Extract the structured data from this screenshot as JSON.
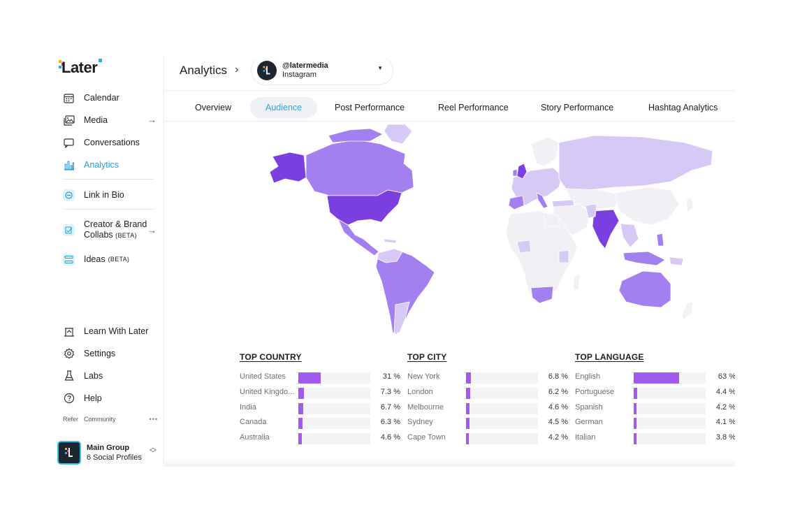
{
  "app": {
    "logo_text": "Later"
  },
  "sidebar": {
    "items": [
      {
        "label": "Calendar",
        "icon": "calendar-icon"
      },
      {
        "label": "Media",
        "icon": "image-icon"
      },
      {
        "label": "Conversations",
        "icon": "chat-icon"
      },
      {
        "label": "Analytics",
        "icon": "bar-chart-icon"
      },
      {
        "label": "Link in Bio",
        "icon": "link-icon"
      },
      {
        "label": "Creator & Brand",
        "label2": "Collabs",
        "beta": "(BETA)",
        "icon": "collab-icon"
      },
      {
        "label": "Ideas",
        "beta": "(BETA)",
        "icon": "ideas-icon"
      },
      {
        "label": "Learn With Later",
        "icon": "learn-icon"
      },
      {
        "label": "Settings",
        "icon": "gear-icon"
      },
      {
        "label": "Labs",
        "icon": "flask-icon"
      },
      {
        "label": "Help",
        "icon": "help-icon"
      }
    ],
    "sub_links": [
      "Refer",
      "Community"
    ],
    "more": "•••",
    "group": {
      "name": "Main Group",
      "profiles": "6 Social Profiles"
    }
  },
  "header": {
    "title": "Analytics",
    "profile": {
      "handle": "@latermedia",
      "network": "Instagram"
    }
  },
  "tabs": [
    {
      "label": "Overview"
    },
    {
      "label": "Audience",
      "active": true
    },
    {
      "label": "Post Performance"
    },
    {
      "label": "Reel Performance"
    },
    {
      "label": "Story Performance"
    },
    {
      "label": "Hashtag Analytics"
    }
  ],
  "stats": [
    {
      "title": "TOP COUNTRY",
      "rows": [
        {
          "label": "United States",
          "value": "31 %",
          "pct": 31
        },
        {
          "label": "United Kingdo...",
          "value": "7.3 %",
          "pct": 7.3
        },
        {
          "label": "India",
          "value": "6.7 %",
          "pct": 6.7
        },
        {
          "label": "Canada",
          "value": "6.3 %",
          "pct": 6.3
        },
        {
          "label": "Australia",
          "value": "4.6 %",
          "pct": 4.6
        }
      ]
    },
    {
      "title": "TOP CITY",
      "rows": [
        {
          "label": "New York",
          "value": "6.8 %",
          "pct": 6.8
        },
        {
          "label": "London",
          "value": "6.2 %",
          "pct": 6.2
        },
        {
          "label": "Melbourne",
          "value": "4.6 %",
          "pct": 4.6
        },
        {
          "label": "Sydney",
          "value": "4.5 %",
          "pct": 4.5
        },
        {
          "label": "Cape Town",
          "value": "4.2 %",
          "pct": 4.2
        }
      ]
    },
    {
      "title": "TOP LANGUAGE",
      "rows": [
        {
          "label": "English",
          "value": "63 %",
          "pct": 63
        },
        {
          "label": "Portuguese",
          "value": "4.4 %",
          "pct": 4.4
        },
        {
          "label": "Spanish",
          "value": "4.2 %",
          "pct": 4.2
        },
        {
          "label": "German",
          "value": "4.1 %",
          "pct": 4.1
        },
        {
          "label": "Italian",
          "value": "3.8 %",
          "pct": 3.8
        }
      ]
    }
  ],
  "colors": {
    "accent": "#22a0de",
    "bar": "#a25bef",
    "map_strong": "#7b3fe0",
    "map_mid": "#a47ff0",
    "map_light": "#d7c9f6",
    "map_empty": "#f0f0f5"
  }
}
